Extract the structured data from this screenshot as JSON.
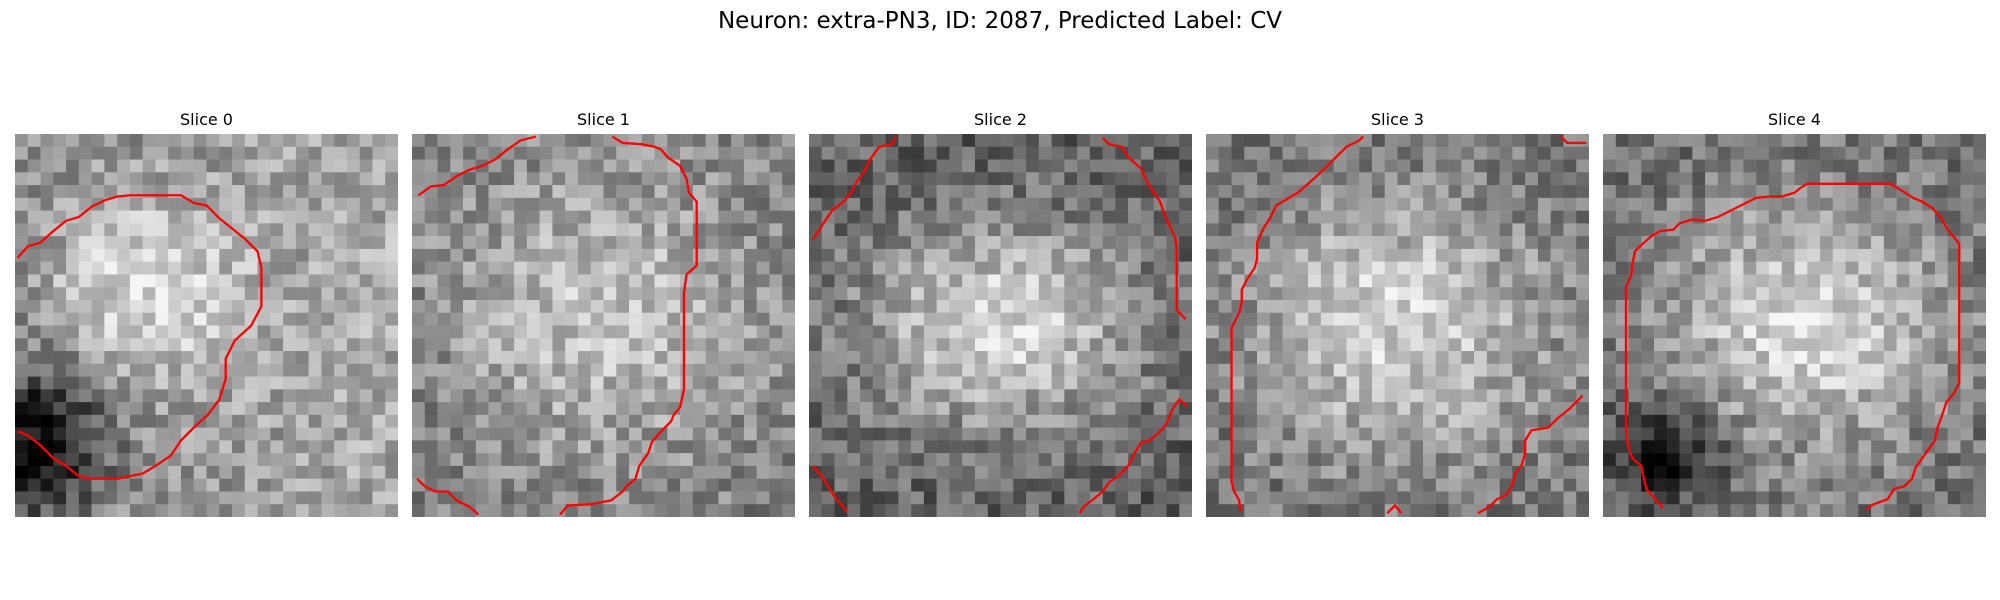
{
  "figure": {
    "title": "Neuron: extra-PN3, ID: 2087, Predicted Label: CV",
    "contour_color": "#ff0000"
  },
  "panels": [
    {
      "title": "Slice 0",
      "image": "grayscale microscopy patch, soma region with dark area lower-left",
      "brightness_hint": "bright-upper-right, dark-lower-left"
    },
    {
      "title": "Slice 1",
      "image": "grayscale microscopy patch, bright central soma",
      "brightness_hint": "bright-center"
    },
    {
      "title": "Slice 2",
      "image": "grayscale microscopy patch, bright oval soma, dark border",
      "brightness_hint": "bright-oval"
    },
    {
      "title": "Slice 3",
      "image": "grayscale microscopy patch, bright central soma",
      "brightness_hint": "bright-center"
    },
    {
      "title": "Slice 4",
      "image": "grayscale microscopy patch, bright rounded soma, dark lower-left",
      "brightness_hint": "bright-center, dark-lower-left"
    }
  ]
}
